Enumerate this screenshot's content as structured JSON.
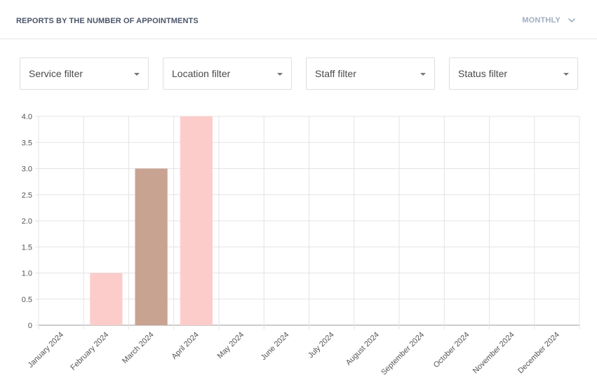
{
  "header": {
    "title": "REPORTS BY THE NUMBER OF APPOINTMENTS",
    "period": "MONTHLY"
  },
  "filters": [
    {
      "label": "Service filter"
    },
    {
      "label": "Location filter"
    },
    {
      "label": "Staff filter"
    },
    {
      "label": "Status filter"
    }
  ],
  "colors": {
    "bar_light": "#fccccb",
    "bar_dark": "#c9a391",
    "grid": "#e3e3e3",
    "axis": "#999999"
  },
  "chart_data": {
    "type": "bar",
    "categories": [
      "January 2024",
      "February 2024",
      "March 2024",
      "April 2024",
      "May 2024",
      "June 2024",
      "July 2024",
      "August 2024",
      "September 2024",
      "October 2024",
      "November 2024",
      "December 2024"
    ],
    "values": [
      0,
      1,
      3,
      4,
      0,
      0,
      0,
      0,
      0,
      0,
      0,
      0
    ],
    "bar_colors": [
      "#fccccb",
      "#fccccb",
      "#c9a391",
      "#fccccb",
      "#fccccb",
      "#fccccb",
      "#fccccb",
      "#fccccb",
      "#fccccb",
      "#fccccb",
      "#fccccb",
      "#fccccb"
    ],
    "y_ticks": [
      "0",
      "0.5",
      "1.0",
      "1.5",
      "2.0",
      "2.5",
      "3.0",
      "3.5",
      "4.0"
    ],
    "ylim": [
      0,
      4
    ],
    "grid": true,
    "legend": "none"
  }
}
